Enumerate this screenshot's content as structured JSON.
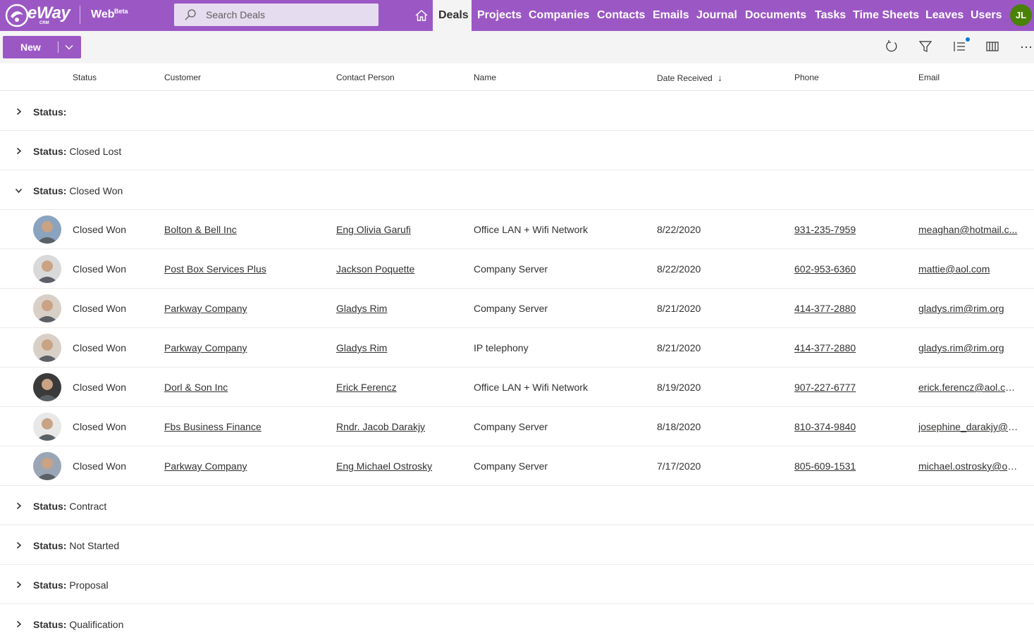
{
  "app": {
    "logo_text": "eWay",
    "logo_sub": "CRM",
    "name": "Web",
    "badge": "Beta",
    "user_initials": "JL"
  },
  "search": {
    "placeholder": "Search Deals"
  },
  "nav": {
    "items": [
      {
        "label": "Deals",
        "active": true
      },
      {
        "label": "Projects"
      },
      {
        "label": "Companies"
      },
      {
        "label": "Contacts"
      },
      {
        "label": "Emails"
      },
      {
        "label": "Journal"
      },
      {
        "label": "Documents"
      },
      {
        "label": "Tasks"
      },
      {
        "label": "Time Sheets"
      },
      {
        "label": "Leaves"
      },
      {
        "label": "Users"
      }
    ]
  },
  "toolbar": {
    "new_label": "New",
    "icons": [
      "refresh-icon",
      "filter-icon",
      "list-settings-icon",
      "columns-icon",
      "more-icon"
    ]
  },
  "columns": {
    "status": "Status",
    "customer": "Customer",
    "contact": "Contact Person",
    "name": "Name",
    "date": "Date Received",
    "phone": "Phone",
    "email": "Email",
    "sort_indicator": "↓"
  },
  "group_prefix": "Status:",
  "groups": [
    {
      "value": "",
      "expanded": false
    },
    {
      "value": "Closed Lost",
      "expanded": false
    },
    {
      "value": "Closed Won",
      "expanded": true
    },
    {
      "value": "Contract",
      "expanded": false
    },
    {
      "value": "Not Started",
      "expanded": false
    },
    {
      "value": "Proposal",
      "expanded": false
    },
    {
      "value": "Qualification",
      "expanded": false
    }
  ],
  "rows": [
    {
      "status": "Closed Won",
      "customer": "Bolton & Bell Inc",
      "contact": "Eng Olivia Garufi",
      "name": "Office LAN + Wifi Network",
      "date": "8/22/2020",
      "phone": "931-235-7959",
      "email": "meaghan@hotmail.c...",
      "photo_color": "#8aa3bf"
    },
    {
      "status": "Closed Won",
      "customer": "Post Box Services Plus",
      "contact": "Jackson Poquette",
      "name": "Company Server",
      "date": "8/22/2020",
      "phone": "602-953-6360",
      "email": "mattie@aol.com",
      "photo_color": "#d9d9d9"
    },
    {
      "status": "Closed Won",
      "customer": "Parkway Company",
      "contact": "Gladys Rim",
      "name": "Company Server",
      "date": "8/21/2020",
      "phone": "414-377-2880",
      "email": "gladys.rim@rim.org",
      "photo_color": "#d8cfc6"
    },
    {
      "status": "Closed Won",
      "customer": "Parkway Company",
      "contact": "Gladys Rim",
      "name": "IP telephony",
      "date": "8/21/2020",
      "phone": "414-377-2880",
      "email": "gladys.rim@rim.org",
      "photo_color": "#d8cfc6"
    },
    {
      "status": "Closed Won",
      "customer": "Dorl & Son Inc",
      "contact": "Erick Ferencz",
      "name": "Office LAN + Wifi Network",
      "date": "8/19/2020",
      "phone": "907-227-6777",
      "email": "erick.ferencz@aol.com",
      "photo_color": "#3a3a3a"
    },
    {
      "status": "Closed Won",
      "customer": "Fbs Business Finance",
      "contact": "Rndr. Jacob Darakjy",
      "name": "Company Server",
      "date": "8/18/2020",
      "phone": "810-374-9840",
      "email": "josephine_darakjy@d...",
      "photo_color": "#e8e8e8"
    },
    {
      "status": "Closed Won",
      "customer": "Parkway Company",
      "contact": "Eng Michael Ostrosky",
      "name": "Company Server",
      "date": "7/17/2020",
      "phone": "805-609-1531",
      "email": "michael.ostrosky@os...",
      "photo_color": "#9aa6b5"
    }
  ],
  "colors": {
    "brand": "#9b58c5",
    "toolbar_bg": "#f5f4f4",
    "avatar_bg": "#498205"
  }
}
